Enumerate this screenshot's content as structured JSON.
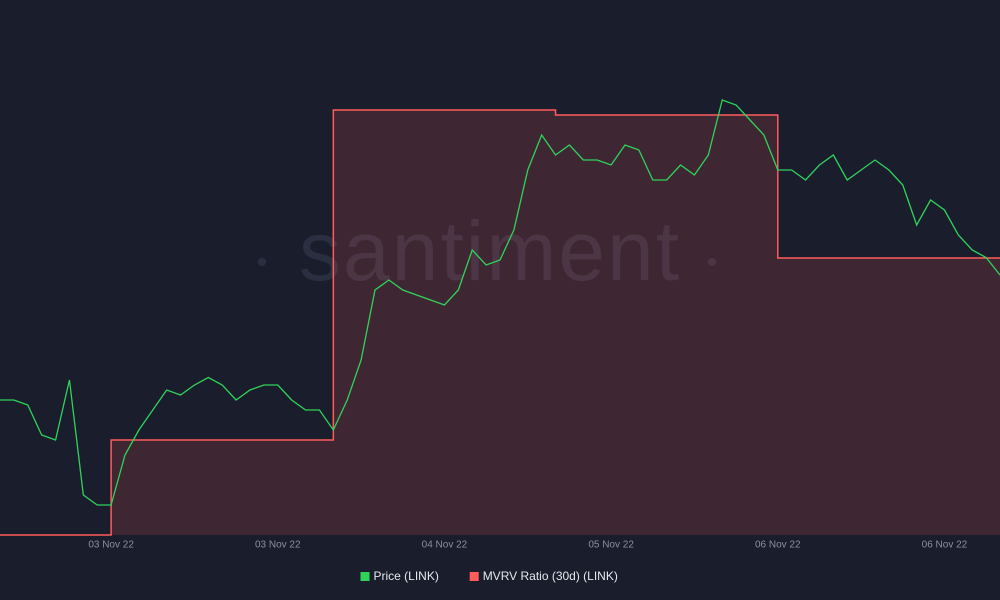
{
  "chart_data": {
    "type": "line",
    "watermark": "santiment",
    "x": [
      0,
      1,
      2,
      3,
      4,
      5,
      6,
      7,
      8,
      9,
      10,
      11,
      12,
      13,
      14,
      15,
      16,
      17,
      18,
      19,
      20,
      21,
      22,
      23,
      24,
      25,
      26,
      27,
      28,
      29,
      30,
      31,
      32,
      33,
      34,
      35,
      36,
      37,
      38,
      39,
      40,
      41,
      42,
      43,
      44,
      45,
      46,
      47,
      48,
      49,
      50,
      51,
      52,
      53,
      54,
      55,
      56,
      57,
      58,
      59,
      60,
      61,
      62,
      63,
      64,
      65,
      66,
      67,
      68,
      69,
      70,
      71,
      72
    ],
    "xlim": [
      0,
      72
    ],
    "xticks": [
      {
        "value": 8,
        "label": "03 Nov 22"
      },
      {
        "value": 20,
        "label": "03 Nov 22"
      },
      {
        "value": 32,
        "label": "04 Nov 22"
      },
      {
        "value": 44,
        "label": "05 Nov 22"
      },
      {
        "value": 56,
        "label": "06 Nov 22"
      },
      {
        "value": 68,
        "label": "06 Nov 22"
      }
    ],
    "ylim": [
      7.16,
      9.3
    ],
    "y2lim": [
      -11.4,
      10
    ],
    "series": [
      {
        "name": "Price (LINK)",
        "color": "#2fd35a",
        "values": [
          7.7,
          7.7,
          7.68,
          7.56,
          7.54,
          7.78,
          7.32,
          7.28,
          7.28,
          7.48,
          7.58,
          7.66,
          7.74,
          7.72,
          7.76,
          7.79,
          7.76,
          7.7,
          7.74,
          7.76,
          7.76,
          7.7,
          7.66,
          7.66,
          7.58,
          7.7,
          7.86,
          8.14,
          8.18,
          8.14,
          8.12,
          8.1,
          8.08,
          8.14,
          8.3,
          8.24,
          8.26,
          8.38,
          8.62,
          8.76,
          8.68,
          8.72,
          8.66,
          8.66,
          8.64,
          8.72,
          8.7,
          8.58,
          8.58,
          8.64,
          8.6,
          8.68,
          8.9,
          8.88,
          8.82,
          8.76,
          8.62,
          8.62,
          8.58,
          8.64,
          8.68,
          8.58,
          8.62,
          8.66,
          8.62,
          8.56,
          8.4,
          8.5,
          8.46,
          8.36,
          8.3,
          8.27,
          8.2
        ]
      },
      {
        "name": "MVRV Ratio (30d) (LINK)",
        "color": "#ff5c5c",
        "axis": "y2",
        "step": true,
        "values": [
          -11.4,
          -11.4,
          -11.4,
          -11.4,
          -11.4,
          -11.4,
          -11.4,
          -11.4,
          -7.6,
          -7.6,
          -7.6,
          -7.6,
          -7.6,
          -7.6,
          -7.6,
          -7.6,
          -7.6,
          -7.6,
          -7.6,
          -7.6,
          -7.6,
          -7.6,
          -7.6,
          -7.6,
          5.6,
          5.6,
          5.6,
          5.6,
          5.6,
          5.6,
          5.6,
          5.6,
          5.6,
          5.6,
          5.6,
          5.6,
          5.6,
          5.6,
          5.6,
          5.6,
          5.4,
          5.4,
          5.4,
          5.4,
          5.4,
          5.4,
          5.4,
          5.4,
          5.4,
          5.4,
          5.4,
          5.4,
          5.4,
          5.4,
          5.4,
          5.4,
          -0.32,
          -0.32,
          -0.32,
          -0.32,
          -0.32,
          -0.32,
          -0.32,
          -0.32,
          -0.32,
          -0.32,
          -0.32,
          -0.32,
          -0.32,
          -0.32,
          -0.32,
          -0.32,
          -0.32
        ]
      }
    ]
  }
}
